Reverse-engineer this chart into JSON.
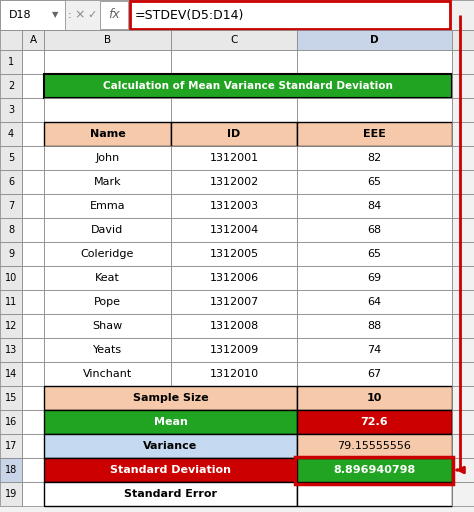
{
  "title": "Calculation of Mean Variance Standard Deviation",
  "formula_bar_text": "=STDEV(D5:D14)",
  "cell_ref": "D18",
  "table_headers": [
    "Name",
    "ID",
    "EEE"
  ],
  "names": [
    "John",
    "Mark",
    "Emma",
    "David",
    "Coleridge",
    "Keat",
    "Pope",
    "Shaw",
    "Yeats",
    "Vinchant"
  ],
  "ids": [
    "1312001",
    "1312002",
    "1312003",
    "1312004",
    "1312005",
    "1312006",
    "1312007",
    "1312008",
    "1312009",
    "1312010"
  ],
  "eee": [
    "82",
    "65",
    "84",
    "68",
    "65",
    "69",
    "64",
    "88",
    "74",
    "67"
  ],
  "stat_values": [
    "10",
    "72.6",
    "79.15555556",
    "8.896940798",
    ""
  ],
  "title_bg": "#21a421",
  "title_fg": "#ffffff",
  "header_bg": "#f5c9aa",
  "mean_label_bg": "#21a421",
  "mean_label_fg": "#ffffff",
  "mean_value_bg": "#cc0000",
  "mean_value_fg": "#ffffff",
  "variance_label_bg": "#c5d9f1",
  "variance_value_bg": "#f5c9aa",
  "sample_bg": "#f5c9aa",
  "stddev_label_bg": "#cc0000",
  "stddev_label_fg": "#ffffff",
  "stddev_value_bg": "#21a421",
  "stddev_value_fg": "#ffffff",
  "excel_bg": "#f2f2f2",
  "col_header_bg": "#e8e8e8",
  "col_d_header_bg": "#c8d4e8",
  "row_header_bg": "#e8e8e8",
  "row_18_header_bg": "#c8d4e8",
  "white": "#ffffff",
  "red": "#cc0000",
  "formula_bar_border": "#cc0000",
  "arrow_color": "#cc0000",
  "border_dark": "#7f7f7f",
  "border_black": "#000000"
}
